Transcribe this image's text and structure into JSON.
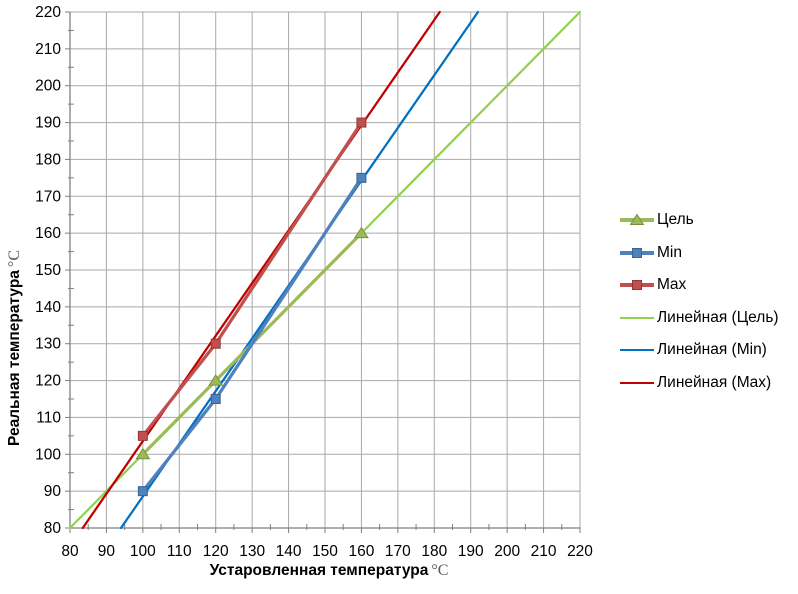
{
  "chart_data": {
    "type": "line",
    "title": "",
    "xlabel": "Устаровленная температура",
    "xlabel_unit": "°C",
    "ylabel": "Реальная температура",
    "ylabel_unit": "°C",
    "xlim": [
      80,
      220
    ],
    "ylim": [
      80,
      220
    ],
    "x_ticks": [
      80,
      90,
      100,
      110,
      120,
      130,
      140,
      150,
      160,
      170,
      180,
      190,
      200,
      210,
      220
    ],
    "y_ticks": [
      80,
      90,
      100,
      110,
      120,
      130,
      140,
      150,
      160,
      170,
      180,
      190,
      200,
      210,
      220
    ],
    "minor_tick_step": 5,
    "grid": true,
    "legend_position": "right",
    "series": [
      {
        "name": "Цель",
        "marker": "triangle",
        "color": "#9BBB59",
        "marker_color": "#9BBB59",
        "marker_stroke": "#75923A",
        "x": [
          100,
          120,
          160
        ],
        "y": [
          100,
          120,
          160
        ]
      },
      {
        "name": "Min",
        "marker": "square",
        "color": "#4F81BD",
        "marker_color": "#4F81BD",
        "marker_stroke": "#3A6493",
        "x": [
          100,
          120,
          160
        ],
        "y": [
          90,
          115,
          175
        ]
      },
      {
        "name": "Max",
        "marker": "square",
        "color": "#C0504D",
        "marker_color": "#C0504D",
        "marker_stroke": "#943634",
        "x": [
          100,
          120,
          160
        ],
        "y": [
          105,
          130,
          190
        ]
      }
    ],
    "trendlines": [
      {
        "name": "Линейная (Цель)",
        "color": "#92D050",
        "slope": 1.0,
        "intercept": 0.0
      },
      {
        "name": "Линейная (Min)",
        "color": "#0070C0",
        "slope": 1.4286,
        "intercept": -54.286
      },
      {
        "name": "Линейная (Max)",
        "color": "#C00000",
        "slope": 1.4286,
        "intercept": -39.286
      }
    ]
  },
  "styles": {
    "background": "#FFFFFF",
    "grid_color": "#A9A9A9",
    "axis_color": "#7F7F7F",
    "tick_label_color": "#000000",
    "unit_color": "#595959"
  }
}
